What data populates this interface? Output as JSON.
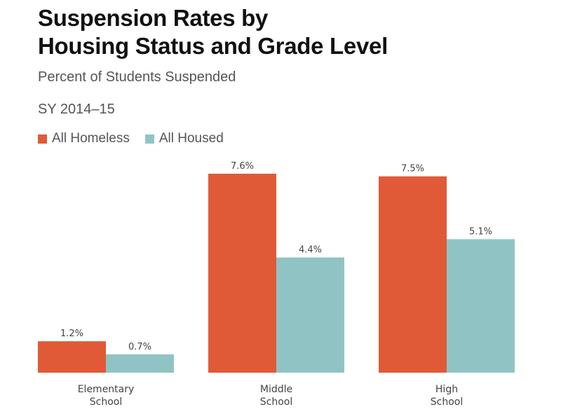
{
  "chart_data": {
    "type": "bar",
    "title_lines": [
      "Suspension Rates by",
      "Housing Status and Grade Level"
    ],
    "subtitle": "Percent of Students Suspended",
    "period": "SY 2014–15",
    "categories": [
      [
        "Elementary",
        "School"
      ],
      [
        "Middle",
        "School"
      ],
      [
        "High",
        "School"
      ]
    ],
    "series": [
      {
        "name": "All Homeless",
        "color": "#e05a38",
        "values": [
          1.2,
          7.6,
          7.5
        ],
        "labels": [
          "1.2%",
          "7.6%",
          "7.5%"
        ]
      },
      {
        "name": "All Housed",
        "color": "#90c4c4",
        "values": [
          0.7,
          4.4,
          5.1
        ],
        "labels": [
          "0.7%",
          "4.4%",
          "5.1%"
        ]
      }
    ],
    "xlabel": "",
    "ylabel": "",
    "ylim": [
      0,
      7.6
    ],
    "grid": false,
    "legend_position": "top-left"
  }
}
